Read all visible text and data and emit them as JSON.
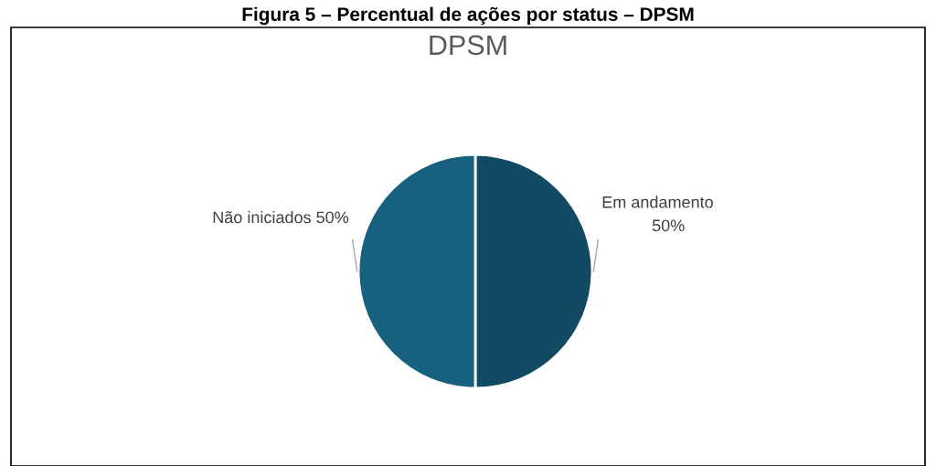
{
  "chart_data": {
    "type": "pie",
    "title": "Figura 5 – Percentual de ações por status – DPSM",
    "subtitle": "DPSM",
    "categories": [
      "Em andamento",
      "Não iniciados"
    ],
    "values": [
      50,
      50
    ],
    "value_labels": [
      "50%",
      "50%"
    ],
    "colors": [
      "#124a63",
      "#17607f"
    ],
    "legend": false
  }
}
